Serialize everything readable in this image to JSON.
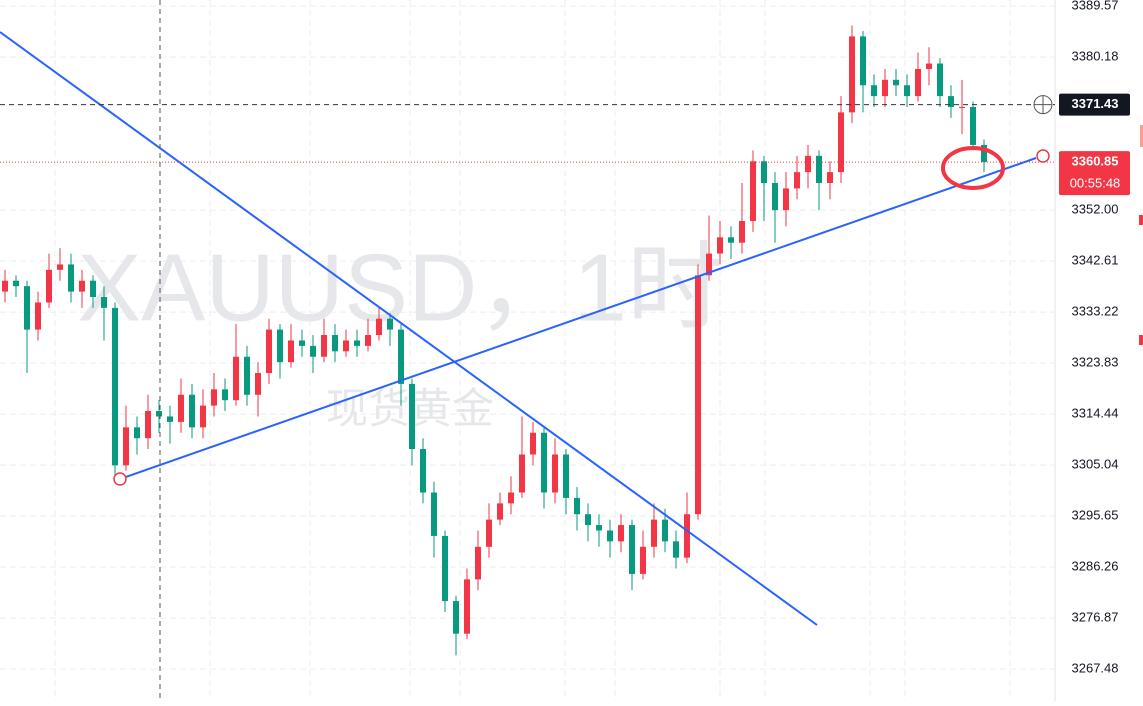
{
  "chart_data": {
    "type": "candlestick",
    "watermark": "XAUUSD，1时",
    "watermark_sub": "现货黄金",
    "up_color": "#f23645",
    "down_color": "#089981",
    "ylim": [
      3261.6,
      3390.7
    ],
    "yticks": [
      3389.57,
      3380.18,
      {
        "value": 3352,
        "label": "3352.00"
      },
      3342.61,
      3333.22,
      3323.83,
      3314.44,
      3305.04,
      3295.65,
      3286.26,
      3276.87,
      3267.48
    ],
    "grid": true,
    "crosshair_price": 3371.43,
    "countdown": "00:55:48",
    "candles": [
      [
        3337,
        3341,
        3335,
        3339
      ],
      [
        3339,
        3340,
        3336,
        3338
      ],
      [
        3338,
        3339,
        3322,
        3330
      ],
      [
        3330,
        3337,
        3328,
        3335
      ],
      [
        3335,
        3344,
        3334,
        3341
      ],
      [
        3341,
        3345,
        3339,
        3342
      ],
      [
        3342,
        3344,
        3335,
        3337
      ],
      [
        3337,
        3341,
        3334,
        3339
      ],
      [
        3339,
        3340,
        3334,
        3336
      ],
      [
        3336,
        3338,
        3328,
        3334
      ],
      [
        3334,
        3335,
        3303,
        3305
      ],
      [
        3305,
        3316,
        3304,
        3312
      ],
      [
        3312,
        3314,
        3307,
        3310
      ],
      [
        3310,
        3318,
        3308,
        3315
      ],
      [
        3315,
        3317,
        3311,
        3314
      ],
      [
        3314,
        3316,
        3309,
        3313
      ],
      [
        3313,
        3321,
        3311,
        3318
      ],
      [
        3318,
        3320,
        3310,
        3312
      ],
      [
        3312,
        3319,
        3310,
        3316
      ],
      [
        3316,
        3322,
        3314,
        3319
      ],
      [
        3319,
        3321,
        3315,
        3317
      ],
      [
        3317,
        3331,
        3316,
        3325
      ],
      [
        3325,
        3327,
        3316,
        3318
      ],
      [
        3318,
        3324,
        3314,
        3322
      ],
      [
        3322,
        3332,
        3320,
        3330
      ],
      [
        3330,
        3331,
        3321,
        3324
      ],
      [
        3324,
        3331,
        3323,
        3328
      ],
      [
        3328,
        3330,
        3325,
        3327
      ],
      [
        3327,
        3329,
        3322,
        3325
      ],
      [
        3325,
        3332,
        3324,
        3329
      ],
      [
        3329,
        3331,
        3324,
        3326
      ],
      [
        3326,
        3330,
        3325,
        3328
      ],
      [
        3328,
        3330,
        3325,
        3327
      ],
      [
        3327,
        3332,
        3326,
        3329
      ],
      [
        3329,
        3334,
        3328,
        3332
      ],
      [
        3332,
        3333,
        3327,
        3330
      ],
      [
        3330,
        3331,
        3316,
        3320
      ],
      [
        3320,
        3321,
        3305,
        3308
      ],
      [
        3308,
        3310,
        3298,
        3300
      ],
      [
        3300,
        3302,
        3288,
        3292
      ],
      [
        3292,
        3293,
        3278,
        3280
      ],
      [
        3280,
        3281,
        3270,
        3274
      ],
      [
        3274,
        3286,
        3273,
        3284
      ],
      [
        3284,
        3293,
        3282,
        3290
      ],
      [
        3290,
        3298,
        3288,
        3295
      ],
      [
        3295,
        3300,
        3294,
        3298
      ],
      [
        3298,
        3303,
        3296,
        3300
      ],
      [
        3300,
        3314,
        3299,
        3307
      ],
      [
        3307,
        3313,
        3305,
        3311
      ],
      [
        3311,
        3312,
        3297,
        3300
      ],
      [
        3300,
        3310,
        3298,
        3307
      ],
      [
        3307,
        3308,
        3296,
        3299
      ],
      [
        3299,
        3301,
        3293,
        3296
      ],
      [
        3296,
        3298,
        3291,
        3294
      ],
      [
        3294,
        3296,
        3290,
        3293
      ],
      [
        3293,
        3295,
        3288,
        3291
      ],
      [
        3291,
        3296,
        3289,
        3294
      ],
      [
        3294,
        3295,
        3282,
        3285
      ],
      [
        3285,
        3293,
        3284,
        3290
      ],
      [
        3290,
        3298,
        3288,
        3295
      ],
      [
        3295,
        3297,
        3289,
        3291
      ],
      [
        3291,
        3293,
        3286,
        3288
      ],
      [
        3288,
        3300,
        3287,
        3296
      ],
      [
        3296,
        3342,
        3295,
        3340
      ],
      [
        3340,
        3351,
        3339,
        3344
      ],
      [
        3344,
        3350,
        3342,
        3347
      ],
      [
        3347,
        3349,
        3343,
        3346
      ],
      [
        3346,
        3357,
        3344,
        3350
      ],
      [
        3350,
        3363,
        3348,
        3361
      ],
      [
        3361,
        3362,
        3350,
        3357
      ],
      [
        3357,
        3359,
        3346,
        3352
      ],
      [
        3352,
        3359,
        3349,
        3356
      ],
      [
        3356,
        3362,
        3354,
        3359
      ],
      [
        3359,
        3364,
        3356,
        3362
      ],
      [
        3362,
        3363,
        3352,
        3357
      ],
      [
        3357,
        3361,
        3354,
        3359
      ],
      [
        3359,
        3373,
        3357,
        3370
      ],
      [
        3370,
        3386,
        3368,
        3384
      ],
      [
        3384,
        3385,
        3370,
        3375
      ],
      [
        3375,
        3377,
        3371,
        3373
      ],
      [
        3373,
        3378,
        3371,
        3376
      ],
      [
        3376,
        3378,
        3373,
        3375
      ],
      [
        3375,
        3377,
        3371,
        3373
      ],
      [
        3373,
        3381,
        3372,
        3378
      ],
      [
        3378,
        3382,
        3375,
        3379
      ],
      [
        3379,
        3380,
        3371,
        3373
      ],
      [
        3373,
        3375,
        3369,
        3371
      ],
      [
        3371,
        3376,
        3366,
        3371
      ],
      [
        3371,
        3372,
        3363,
        3364
      ],
      [
        3364,
        3365,
        3359,
        3360.85
      ]
    ]
  }
}
